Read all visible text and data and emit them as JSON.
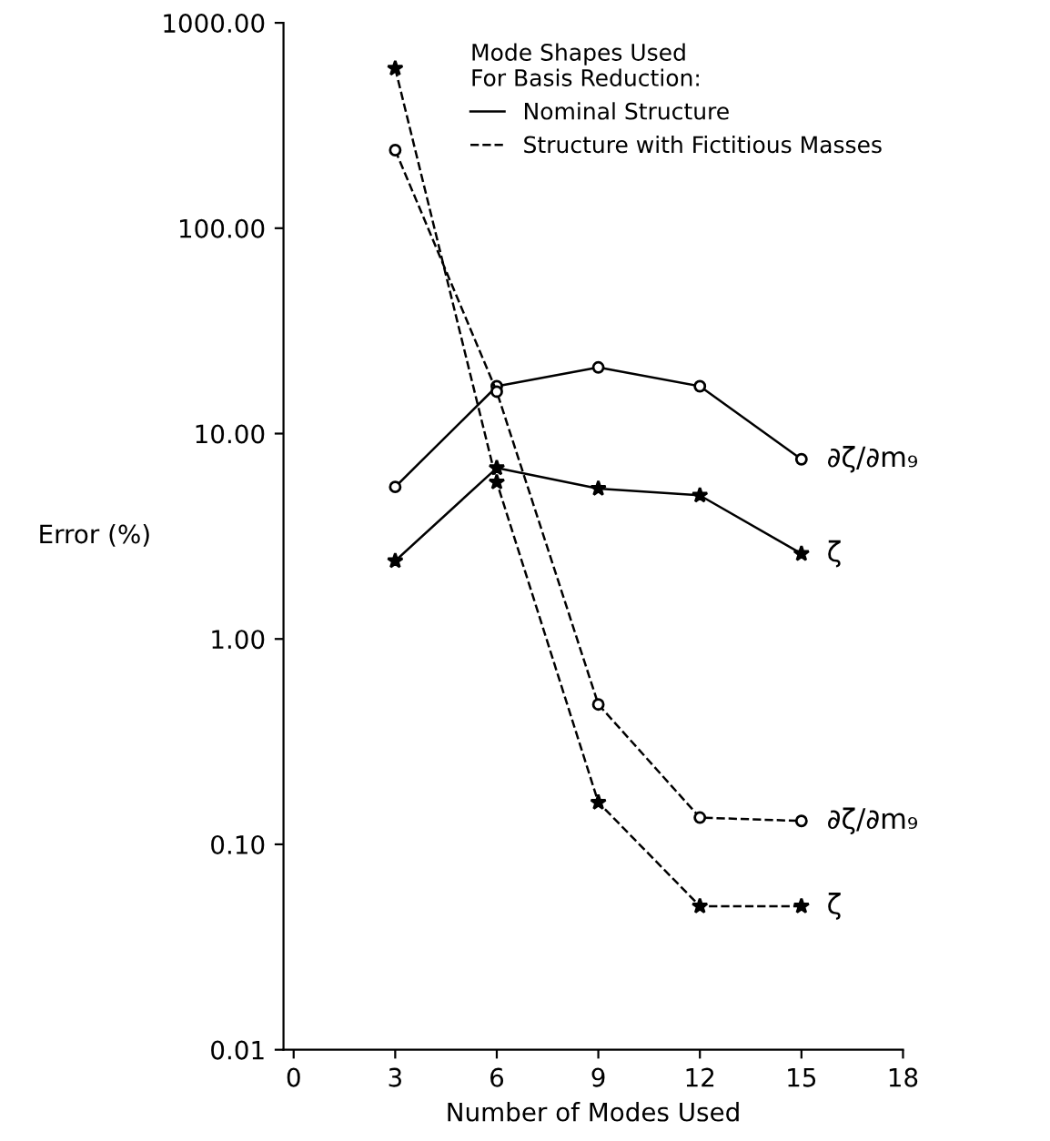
{
  "chart_data": {
    "type": "line",
    "xlabel": "Number of Modes Used",
    "ylabel": "Error (%)",
    "legend_title": "Mode Shapes Used\nFor Basis Reduction:",
    "x": [
      3,
      6,
      9,
      12,
      15
    ],
    "series": [
      {
        "name": "Nominal Structure",
        "color": "#000000",
        "values": [
          5.5,
          17,
          21,
          17,
          7.5
        ],
        "marker": "circle",
        "line_style": "solid"
      },
      {
        "color": "#000000",
        "values": [
          2.4,
          6.8,
          5.4,
          5.0,
          2.6
        ],
        "marker": "star",
        "line_style": "solid"
      },
      {
        "name": "Structure with Fictitious Masses",
        "color": "#000000",
        "values": [
          240,
          16,
          0.48,
          0.135,
          0.13
        ],
        "marker": "circle",
        "line_style": "dashed"
      },
      {
        "color": "#000000",
        "values": [
          600,
          5.8,
          0.16,
          0.05,
          0.05
        ],
        "marker": "star",
        "line_style": "dashed"
      }
    ],
    "annotations": [
      "∂ζ/∂m₉",
      "ζ",
      "∂ζ/∂m₉",
      "ζ"
    ],
    "log": "y",
    "xlim": [
      -0.3,
      18
    ],
    "xticks": [
      0,
      3,
      6,
      9,
      12,
      15,
      18
    ],
    "ylim": [
      0.01,
      1000
    ],
    "yticks": [
      {
        "value": 0.01,
        "label": "0.01"
      },
      {
        "value": 0.1,
        "label": "0.10"
      },
      {
        "value": 1,
        "label": "1.00"
      },
      {
        "value": 10,
        "label": "10.00"
      },
      {
        "value": 100,
        "label": "100.00"
      },
      {
        "value": 1000,
        "label": "1000.00"
      }
    ],
    "grid": false,
    "legend": "top right"
  }
}
